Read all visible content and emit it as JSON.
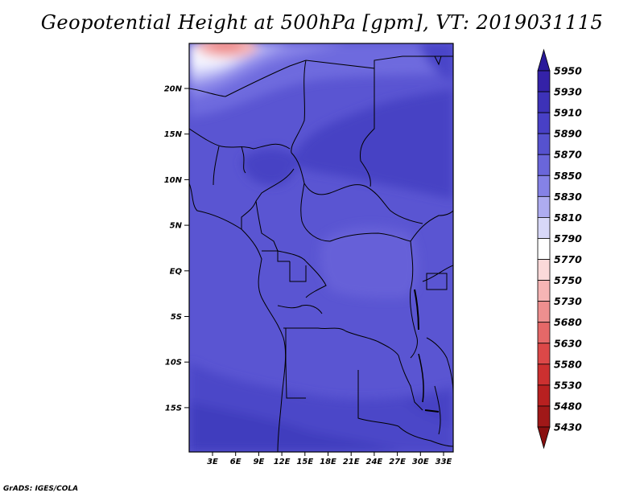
{
  "title": "Geopotential Height at 500hPa [gpm], VT: 2019031115",
  "credit": "GrADS: IGES/COLA",
  "map": {
    "lat_ticks": [
      "20N",
      "15N",
      "10N",
      "5N",
      "EQ",
      "5S",
      "10S",
      "15S"
    ],
    "lon_ticks": [
      "3E",
      "6E",
      "9E",
      "12E",
      "15E",
      "18E",
      "21E",
      "24E",
      "27E",
      "30E",
      "33E"
    ]
  },
  "colorbar": {
    "levels": [
      "5950",
      "5930",
      "5910",
      "5890",
      "5870",
      "5850",
      "5830",
      "5810",
      "5790",
      "5770",
      "5750",
      "5730",
      "5680",
      "5630",
      "5580",
      "5530",
      "5480",
      "5430"
    ],
    "colors": [
      "#2a1a9a",
      "#3422a8",
      "#3d32b8",
      "#4840c6",
      "#5652cf",
      "#6a66da",
      "#8582e6",
      "#aeacf0",
      "#d8d8f8",
      "#ffffff",
      "#fbd9d9",
      "#f6b5b5",
      "#ee8f8f",
      "#e56868",
      "#dc4848",
      "#cc3030",
      "#b82020",
      "#a01818",
      "#8a1010"
    ]
  }
}
